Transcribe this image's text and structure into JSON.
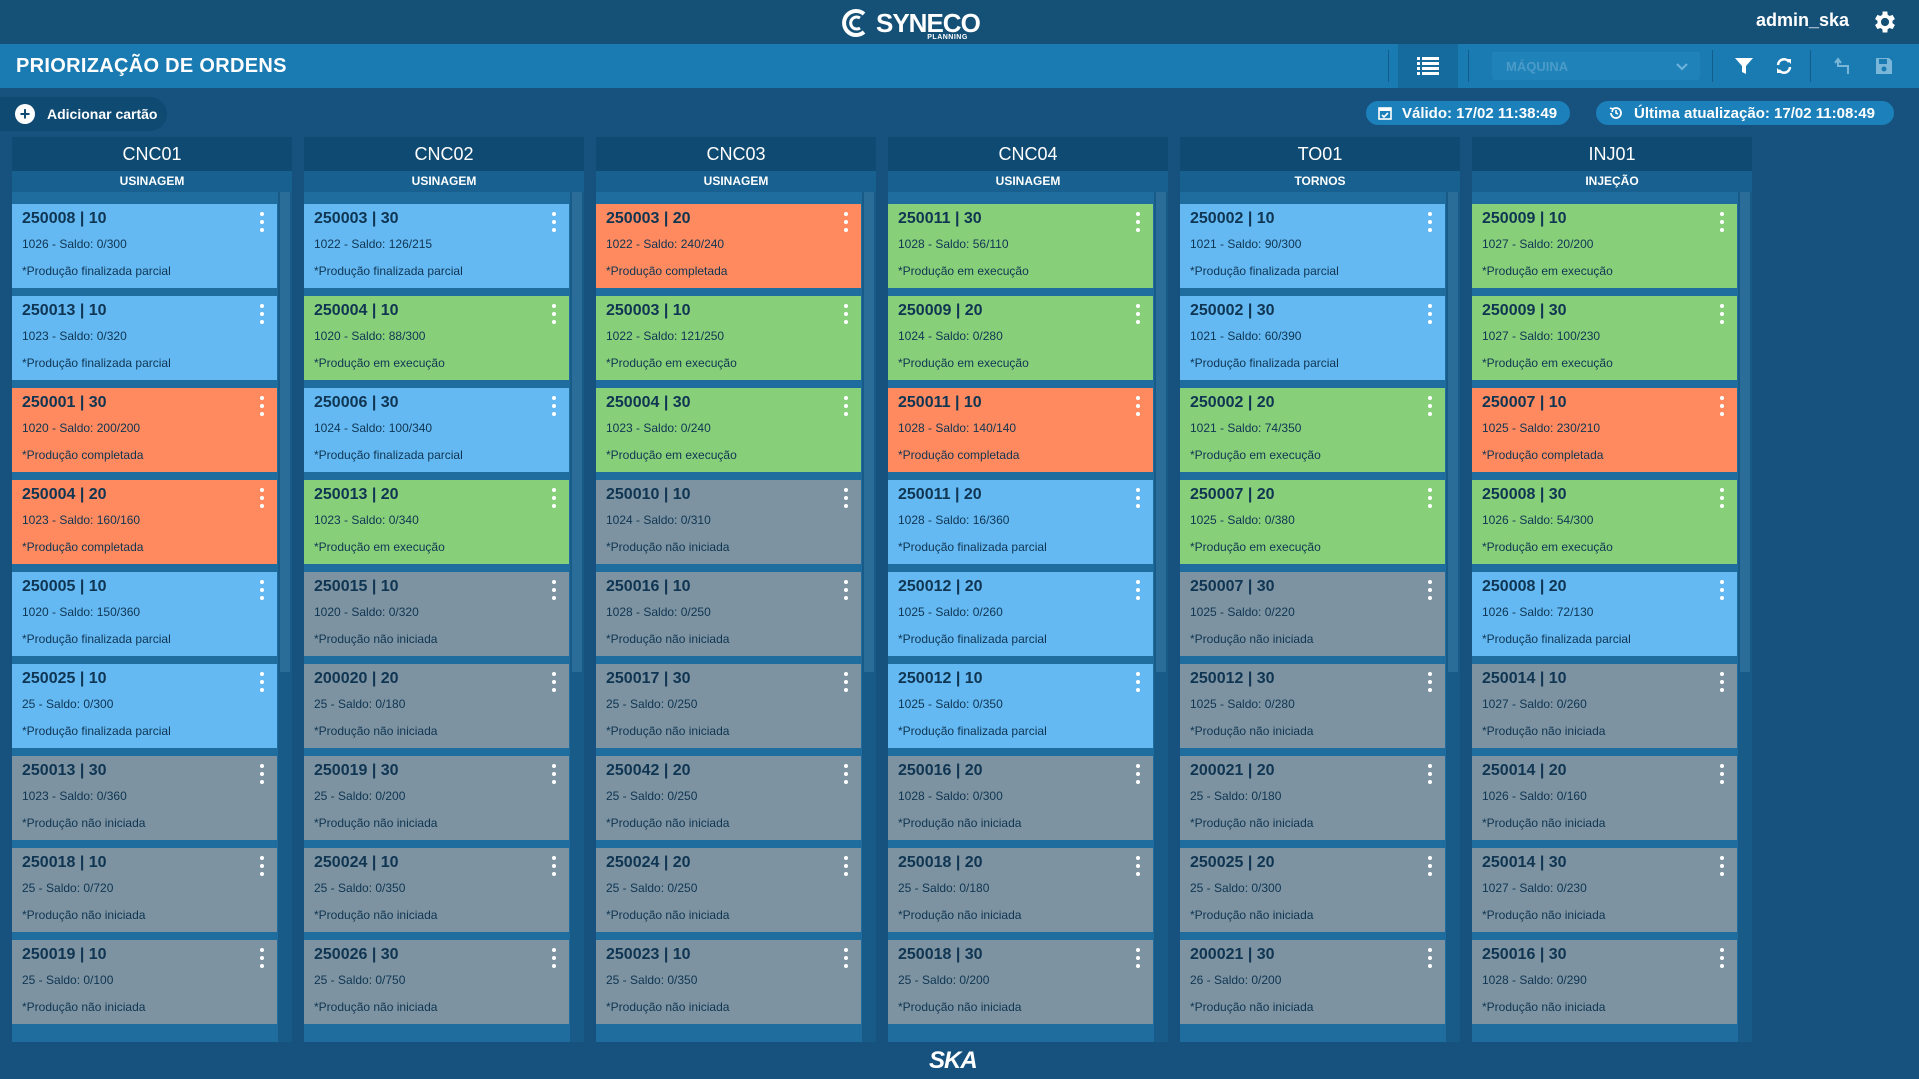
{
  "header": {
    "logo_text": "SYNECO",
    "logo_sub": "PLANNING",
    "username": "admin_ska"
  },
  "toolbar": {
    "title": "PRIORIZAÇÃO DE ORDENS",
    "machine_placeholder": "MÁQUINA"
  },
  "actions": {
    "add_card_label": "Adicionar cartão",
    "valid_label": "Válido: 17/02 11:38:49",
    "last_update_label": "Última atualização: 17/02 11:08:49"
  },
  "colors": {
    "green": "#88cf7a",
    "blue": "#64b9f3",
    "orange": "#ff8a5f",
    "gray": "#7d93a1"
  },
  "columns": [
    {
      "name": "CNC01",
      "group": "USINAGEM",
      "cards": [
        {
          "title": "250008 | 10",
          "sub": "1026 - Saldo: 0/300",
          "status": "*Produção finalizada parcial",
          "color": "blue"
        },
        {
          "title": "250013 | 10",
          "sub": "1023 - Saldo: 0/320",
          "status": "*Produção finalizada parcial",
          "color": "blue"
        },
        {
          "title": "250001 | 30",
          "sub": "1020 - Saldo: 200/200",
          "status": "*Produção completada",
          "color": "orange"
        },
        {
          "title": "250004 | 20",
          "sub": "1023 - Saldo: 160/160",
          "status": "*Produção completada",
          "color": "orange"
        },
        {
          "title": "250005 | 10",
          "sub": "1020 - Saldo: 150/360",
          "status": "*Produção finalizada parcial",
          "color": "blue"
        },
        {
          "title": "250025 | 10",
          "sub": "25 - Saldo: 0/300",
          "status": "*Produção finalizada parcial",
          "color": "blue"
        },
        {
          "title": "250013 | 30",
          "sub": "1023 - Saldo: 0/360",
          "status": "*Produção não iniciada",
          "color": "gray"
        },
        {
          "title": "250018 | 10",
          "sub": "25 - Saldo: 0/720",
          "status": "*Produção não iniciada",
          "color": "gray"
        },
        {
          "title": "250019 | 10",
          "sub": "25 - Saldo: 0/100",
          "status": "*Produção não iniciada",
          "color": "gray"
        }
      ]
    },
    {
      "name": "CNC02",
      "group": "USINAGEM",
      "cards": [
        {
          "title": "250003 | 30",
          "sub": "1022 - Saldo: 126/215",
          "status": "*Produção finalizada parcial",
          "color": "blue"
        },
        {
          "title": "250004 | 10",
          "sub": "1020 - Saldo: 88/300",
          "status": "*Produção em execução",
          "color": "green"
        },
        {
          "title": "250006 | 30",
          "sub": "1024 - Saldo: 100/340",
          "status": "*Produção finalizada parcial",
          "color": "blue"
        },
        {
          "title": "250013 | 20",
          "sub": "1023 - Saldo: 0/340",
          "status": "*Produção em execução",
          "color": "green"
        },
        {
          "title": "250015 | 10",
          "sub": "1020 - Saldo: 0/320",
          "status": "*Produção não iniciada",
          "color": "gray"
        },
        {
          "title": "200020 | 20",
          "sub": "25 - Saldo: 0/180",
          "status": "*Produção não iniciada",
          "color": "gray"
        },
        {
          "title": "250019 | 30",
          "sub": "25 - Saldo: 0/200",
          "status": "*Produção não iniciada",
          "color": "gray"
        },
        {
          "title": "250024 | 10",
          "sub": "25 - Saldo: 0/350",
          "status": "*Produção não iniciada",
          "color": "gray"
        },
        {
          "title": "250026 | 30",
          "sub": "25 - Saldo: 0/750",
          "status": "*Produção não iniciada",
          "color": "gray"
        }
      ]
    },
    {
      "name": "CNC03",
      "group": "USINAGEM",
      "cards": [
        {
          "title": "250003 | 20",
          "sub": "1022 - Saldo: 240/240",
          "status": "*Produção completada",
          "color": "orange"
        },
        {
          "title": "250003 | 10",
          "sub": "1022 - Saldo: 121/250",
          "status": "*Produção em execução",
          "color": "green"
        },
        {
          "title": "250004 | 30",
          "sub": "1023 - Saldo: 0/240",
          "status": "*Produção em execução",
          "color": "green"
        },
        {
          "title": "250010 | 10",
          "sub": "1024 - Saldo: 0/310",
          "status": "*Produção não iniciada",
          "color": "gray"
        },
        {
          "title": "250016 | 10",
          "sub": "1028 - Saldo: 0/250",
          "status": "*Produção não iniciada",
          "color": "gray"
        },
        {
          "title": "250017 | 30",
          "sub": "25 - Saldo: 0/250",
          "status": "*Produção não iniciada",
          "color": "gray"
        },
        {
          "title": "250042 | 20",
          "sub": "25 - Saldo: 0/250",
          "status": "*Produção não iniciada",
          "color": "gray"
        },
        {
          "title": "250024 | 20",
          "sub": "25 - Saldo: 0/250",
          "status": "*Produção não iniciada",
          "color": "gray"
        },
        {
          "title": "250023 | 10",
          "sub": "25 - Saldo: 0/350",
          "status": "*Produção não iniciada",
          "color": "gray"
        }
      ]
    },
    {
      "name": "CNC04",
      "group": "USINAGEM",
      "cards": [
        {
          "title": "250011 | 30",
          "sub": "1028 - Saldo: 56/110",
          "status": "*Produção em execução",
          "color": "green"
        },
        {
          "title": "250009 | 20",
          "sub": "1024 - Saldo: 0/280",
          "status": "*Produção em execução",
          "color": "green"
        },
        {
          "title": "250011 | 10",
          "sub": "1028 - Saldo: 140/140",
          "status": "*Produção completada",
          "color": "orange"
        },
        {
          "title": "250011 | 20",
          "sub": "1028 - Saldo: 16/360",
          "status": "*Produção finalizada parcial",
          "color": "blue"
        },
        {
          "title": "250012 | 20",
          "sub": "1025 - Saldo: 0/260",
          "status": "*Produção finalizada parcial",
          "color": "blue"
        },
        {
          "title": "250012 | 10",
          "sub": "1025 - Saldo: 0/350",
          "status": "*Produção finalizada parcial",
          "color": "blue"
        },
        {
          "title": "250016 | 20",
          "sub": "1028 - Saldo: 0/300",
          "status": "*Produção não iniciada",
          "color": "gray"
        },
        {
          "title": "250018 | 20",
          "sub": "25 - Saldo: 0/180",
          "status": "*Produção não iniciada",
          "color": "gray"
        },
        {
          "title": "250018 | 30",
          "sub": "25 - Saldo: 0/200",
          "status": "*Produção não iniciada",
          "color": "gray"
        }
      ]
    },
    {
      "name": "TO01",
      "group": "TORNOS",
      "cards": [
        {
          "title": "250002 | 10",
          "sub": "1021 - Saldo: 90/300",
          "status": "*Produção finalizada parcial",
          "color": "blue"
        },
        {
          "title": "250002 | 30",
          "sub": "1021 - Saldo: 60/390",
          "status": "*Produção finalizada parcial",
          "color": "blue"
        },
        {
          "title": "250002 | 20",
          "sub": "1021 - Saldo: 74/350",
          "status": "*Produção em execução",
          "color": "green"
        },
        {
          "title": "250007 | 20",
          "sub": "1025 - Saldo: 0/380",
          "status": "*Produção em execução",
          "color": "green"
        },
        {
          "title": "250007 | 30",
          "sub": "1025 - Saldo: 0/220",
          "status": "*Produção não iniciada",
          "color": "gray"
        },
        {
          "title": "250012 | 30",
          "sub": "1025 - Saldo: 0/280",
          "status": "*Produção não iniciada",
          "color": "gray"
        },
        {
          "title": "200021 | 20",
          "sub": "25 - Saldo: 0/180",
          "status": "*Produção não iniciada",
          "color": "gray"
        },
        {
          "title": "250025 | 20",
          "sub": "25 - Saldo: 0/300",
          "status": "*Produção não iniciada",
          "color": "gray"
        },
        {
          "title": "200021 | 30",
          "sub": "26 - Saldo: 0/200",
          "status": "*Produção não iniciada",
          "color": "gray"
        }
      ]
    },
    {
      "name": "INJ01",
      "group": "INJEÇÃO",
      "cards": [
        {
          "title": "250009 | 10",
          "sub": "1027 - Saldo: 20/200",
          "status": "*Produção em execução",
          "color": "green"
        },
        {
          "title": "250009 | 30",
          "sub": "1027 - Saldo: 100/230",
          "status": "*Produção em execução",
          "color": "green"
        },
        {
          "title": "250007 | 10",
          "sub": "1025 - Saldo: 230/210",
          "status": "*Produção completada",
          "color": "orange"
        },
        {
          "title": "250008 | 30",
          "sub": "1026 - Saldo: 54/300",
          "status": "*Produção em execução",
          "color": "green"
        },
        {
          "title": "250008 | 20",
          "sub": "1026 - Saldo: 72/130",
          "status": "*Produção finalizada parcial",
          "color": "blue"
        },
        {
          "title": "250014 | 10",
          "sub": "1027 - Saldo: 0/260",
          "status": "*Produção não iniciada",
          "color": "gray"
        },
        {
          "title": "250014 | 20",
          "sub": "1026 - Saldo: 0/160",
          "status": "*Produção não iniciada",
          "color": "gray"
        },
        {
          "title": "250014 | 30",
          "sub": "1027 - Saldo: 0/230",
          "status": "*Produção não iniciada",
          "color": "gray"
        },
        {
          "title": "250016 | 30",
          "sub": "1028 - Saldo: 0/290",
          "status": "*Produção não iniciada",
          "color": "gray"
        }
      ]
    }
  ],
  "footer": {
    "brand": "SKA"
  }
}
